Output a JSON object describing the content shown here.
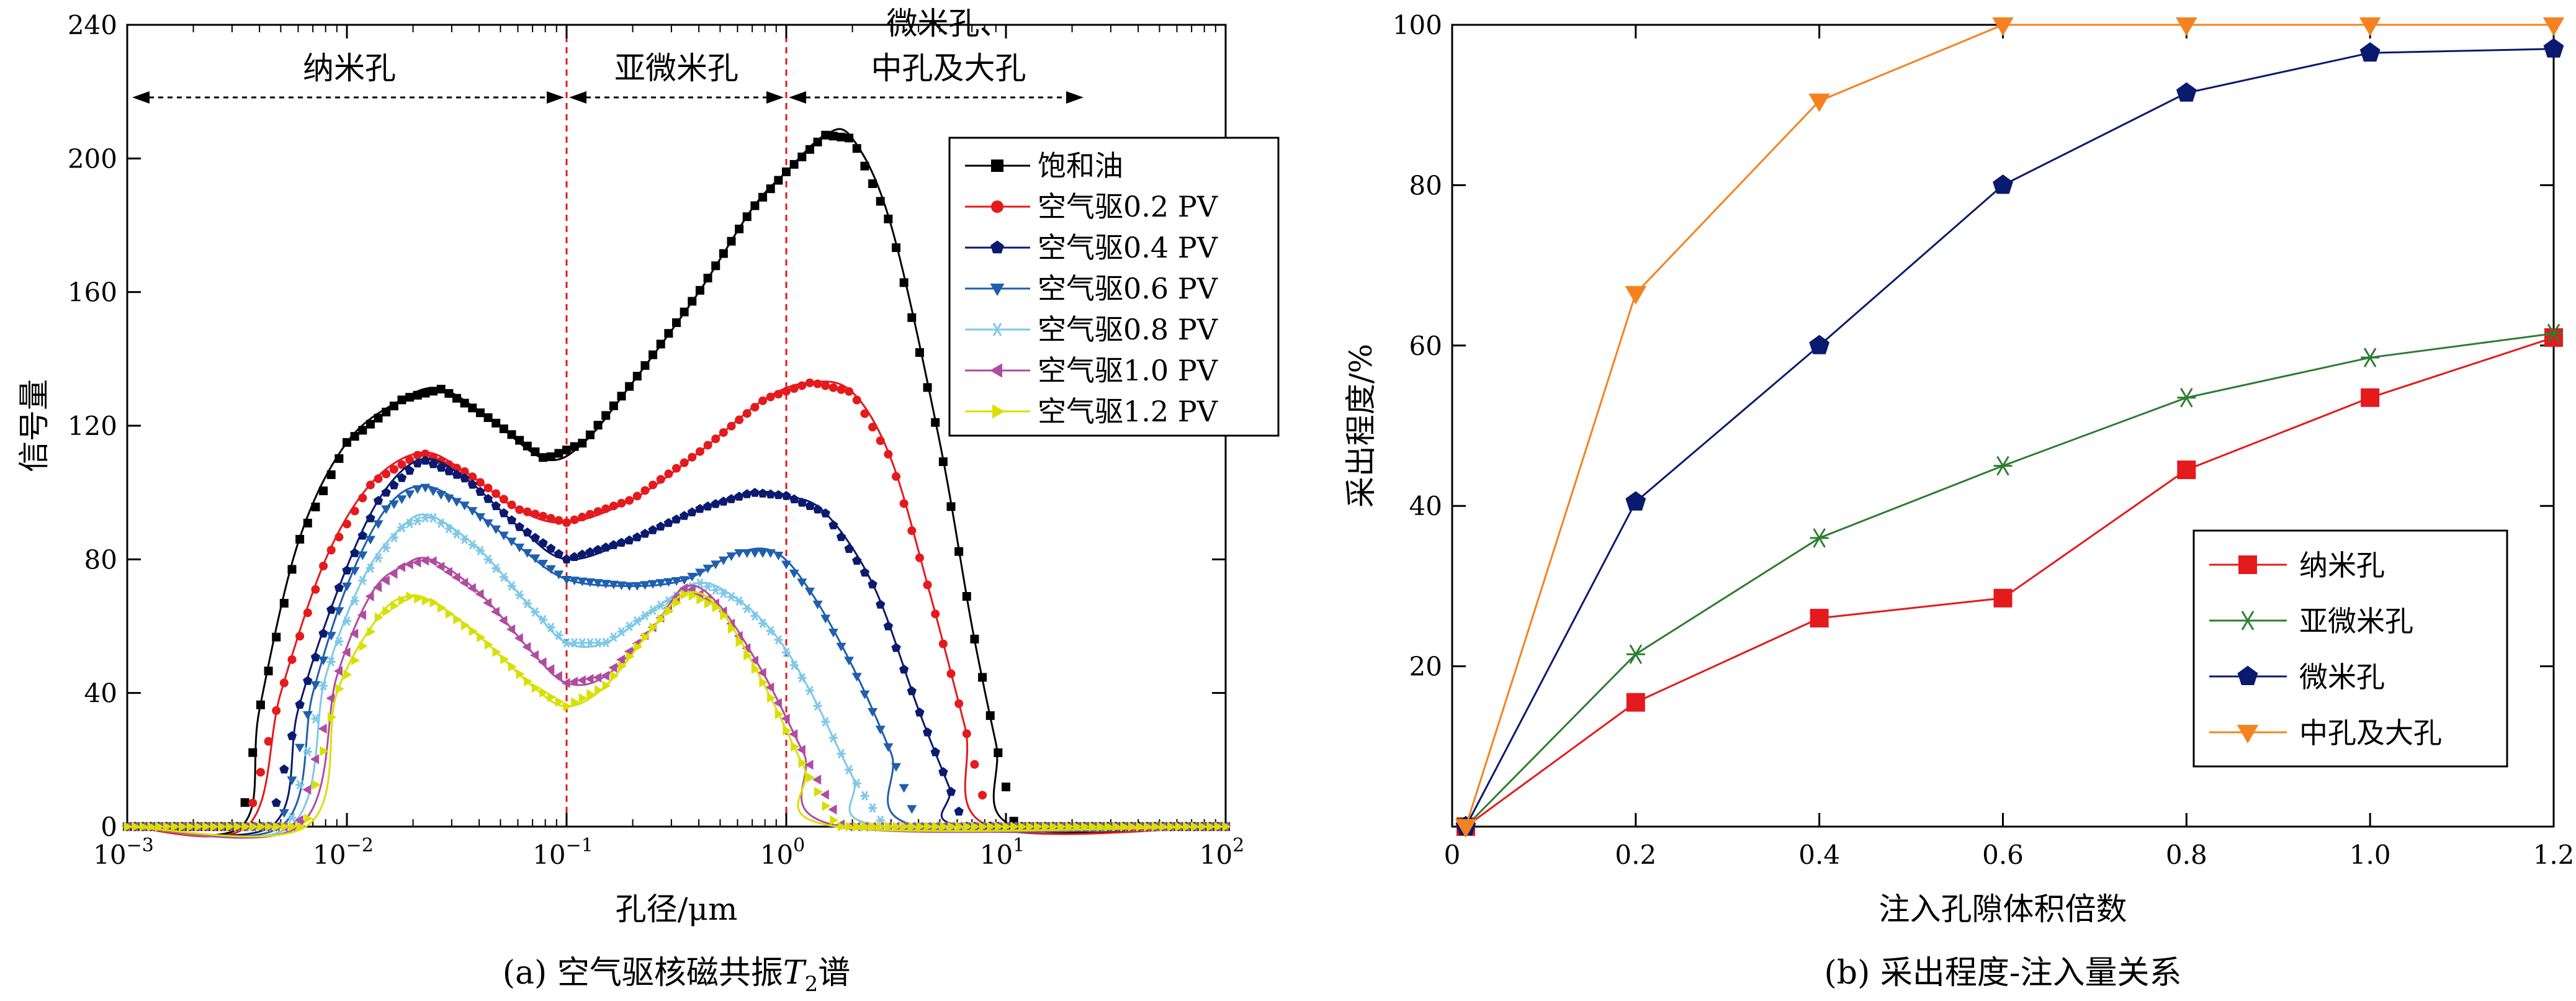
{
  "chart_data": [
    {
      "type": "line",
      "caption_prefix": "(a) 空气驱核磁共振",
      "caption_T": "T",
      "caption_sub": "2",
      "caption_suffix": "谱",
      "xlabel": "孔径/μm",
      "ylabel": "信号量",
      "xscale": "log",
      "xlim": [
        0.001,
        100
      ],
      "ylim": [
        0,
        240
      ],
      "xticks": [
        {
          "base": "10",
          "exp": "−3"
        },
        {
          "base": "10",
          "exp": "−2"
        },
        {
          "base": "10",
          "exp": "−1"
        },
        {
          "base": "10",
          "exp": "0"
        },
        {
          "base": "10",
          "exp": "1"
        },
        {
          "base": "10",
          "exp": "2"
        }
      ],
      "yticks": [
        "0",
        "40",
        "80",
        "120",
        "160",
        "200",
        "240"
      ],
      "vlines": [
        0.1,
        1.0
      ],
      "regions": [
        {
          "label": "纳米孔"
        },
        {
          "label": "亚微米孔"
        },
        {
          "label": "微米孔、"
        },
        {
          "label": "中孔及大孔"
        }
      ],
      "legend_position": "top-right",
      "series": [
        {
          "name": "饱和油",
          "color": "#000000",
          "marker": "square",
          "points": [
            [
              0.0033,
              0
            ],
            [
              0.004,
              35
            ],
            [
              0.006,
              85
            ],
            [
              0.01,
              115
            ],
            [
              0.018,
              128
            ],
            [
              0.027,
              131
            ],
            [
              0.045,
              122
            ],
            [
              0.08,
              110
            ],
            [
              0.12,
              115
            ],
            [
              0.2,
              133
            ],
            [
              0.4,
              160
            ],
            [
              0.7,
              185
            ],
            [
              1.0,
              196
            ],
            [
              1.5,
              207
            ],
            [
              2.0,
              206
            ],
            [
              3.0,
              180
            ],
            [
              5.0,
              115
            ],
            [
              7.0,
              60
            ],
            [
              9.0,
              25
            ],
            [
              11.0,
              0
            ]
          ]
        },
        {
          "name": "空气驱0.2 PV",
          "color": "#e41a1c",
          "marker": "circle",
          "points": [
            [
              0.0035,
              0
            ],
            [
              0.005,
              40
            ],
            [
              0.008,
              80
            ],
            [
              0.013,
              103
            ],
            [
              0.022,
              112
            ],
            [
              0.035,
              106
            ],
            [
              0.06,
              95
            ],
            [
              0.1,
              91
            ],
            [
              0.2,
              98
            ],
            [
              0.4,
              112
            ],
            [
              0.8,
              128
            ],
            [
              1.3,
              133
            ],
            [
              2.0,
              130
            ],
            [
              3.0,
              110
            ],
            [
              4.5,
              70
            ],
            [
              6.5,
              30
            ],
            [
              8.5,
              0
            ]
          ]
        },
        {
          "name": "空气驱0.4 PV",
          "color": "#0a1a6e",
          "marker": "pentagon",
          "points": [
            [
              0.0045,
              0
            ],
            [
              0.006,
              35
            ],
            [
              0.009,
              70
            ],
            [
              0.014,
              98
            ],
            [
              0.022,
              110
            ],
            [
              0.035,
              104
            ],
            [
              0.06,
              90
            ],
            [
              0.1,
              80
            ],
            [
              0.2,
              86
            ],
            [
              0.4,
              95
            ],
            [
              0.7,
              100
            ],
            [
              1.0,
              99
            ],
            [
              1.5,
              94
            ],
            [
              2.5,
              72
            ],
            [
              4.0,
              35
            ],
            [
              5.5,
              12
            ],
            [
              6.5,
              0
            ]
          ]
        },
        {
          "name": "空气驱0.6 PV",
          "color": "#1f5fad",
          "marker": "triangle-down",
          "points": [
            [
              0.005,
              0
            ],
            [
              0.007,
              40
            ],
            [
              0.01,
              72
            ],
            [
              0.015,
              95
            ],
            [
              0.022,
              102
            ],
            [
              0.035,
              96
            ],
            [
              0.06,
              84
            ],
            [
              0.1,
              74
            ],
            [
              0.2,
              72
            ],
            [
              0.35,
              74
            ],
            [
              0.6,
              82
            ],
            [
              0.9,
              82
            ],
            [
              1.3,
              70
            ],
            [
              2.0,
              48
            ],
            [
              3.0,
              22
            ],
            [
              4.0,
              0
            ]
          ]
        },
        {
          "name": "空气驱0.8 PV",
          "color": "#7ec8e8",
          "marker": "asterisk",
          "points": [
            [
              0.0055,
              0
            ],
            [
              0.008,
              45
            ],
            [
              0.012,
              75
            ],
            [
              0.018,
              90
            ],
            [
              0.024,
              93
            ],
            [
              0.04,
              83
            ],
            [
              0.07,
              65
            ],
            [
              0.1,
              55
            ],
            [
              0.15,
              55
            ],
            [
              0.25,
              65
            ],
            [
              0.4,
              73
            ],
            [
              0.6,
              68
            ],
            [
              0.9,
              57
            ],
            [
              1.3,
              40
            ],
            [
              2.0,
              15
            ],
            [
              2.8,
              0
            ]
          ]
        },
        {
          "name": "空气驱1.0 PV",
          "color": "#b04ca0",
          "marker": "triangle-left",
          "points": [
            [
              0.006,
              0
            ],
            [
              0.009,
              45
            ],
            [
              0.013,
              70
            ],
            [
              0.018,
              78
            ],
            [
              0.024,
              80
            ],
            [
              0.04,
              70
            ],
            [
              0.07,
              52
            ],
            [
              0.1,
              43
            ],
            [
              0.15,
              45
            ],
            [
              0.25,
              60
            ],
            [
              0.35,
              72
            ],
            [
              0.5,
              66
            ],
            [
              0.8,
              45
            ],
            [
              1.2,
              22
            ],
            [
              1.8,
              0
            ]
          ]
        },
        {
          "name": "空气驱1.2 PV",
          "color": "#d8e000",
          "marker": "triangle-right",
          "points": [
            [
              0.0065,
              0
            ],
            [
              0.009,
              40
            ],
            [
              0.014,
              63
            ],
            [
              0.019,
              69
            ],
            [
              0.025,
              67
            ],
            [
              0.04,
              57
            ],
            [
              0.07,
              42
            ],
            [
              0.1,
              36
            ],
            [
              0.15,
              42
            ],
            [
              0.25,
              60
            ],
            [
              0.35,
              70
            ],
            [
              0.5,
              65
            ],
            [
              0.8,
              42
            ],
            [
              1.2,
              18
            ],
            [
              1.7,
              0
            ]
          ]
        }
      ]
    },
    {
      "type": "line",
      "caption": "(b) 采出程度-注入量关系",
      "xlabel": "注入孔隙体积倍数",
      "ylabel": "采出程度/%",
      "xlim": [
        0,
        1.2
      ],
      "ylim": [
        0,
        100
      ],
      "xticks": [
        "0",
        "0.2",
        "0.4",
        "0.6",
        "0.8",
        "1.0",
        "1.2"
      ],
      "yticks": [
        "20",
        "40",
        "60",
        "80",
        "100"
      ],
      "legend_position": "bottom-right",
      "x": [
        0,
        0.2,
        0.4,
        0.6,
        0.8,
        1.0,
        1.2
      ],
      "series": [
        {
          "name": "纳米孔",
          "color": "#e41a1c",
          "marker": "square",
          "values": [
            0,
            15.5,
            26,
            28.5,
            44.5,
            53.5,
            61
          ]
        },
        {
          "name": "亚微米孔",
          "color": "#2e7d32",
          "marker": "asterisk",
          "values": [
            0,
            21.5,
            36,
            45,
            53.5,
            58.5,
            61.5
          ]
        },
        {
          "name": "微米孔",
          "color": "#0a1a6e",
          "marker": "pentagon",
          "values": [
            0,
            40.5,
            60,
            80,
            91.5,
            96.5,
            97
          ]
        },
        {
          "name": "中孔及大孔",
          "color": "#f5821f",
          "marker": "triangle-down",
          "values": [
            0,
            66.5,
            90.5,
            100,
            100,
            100,
            100
          ]
        }
      ]
    }
  ]
}
